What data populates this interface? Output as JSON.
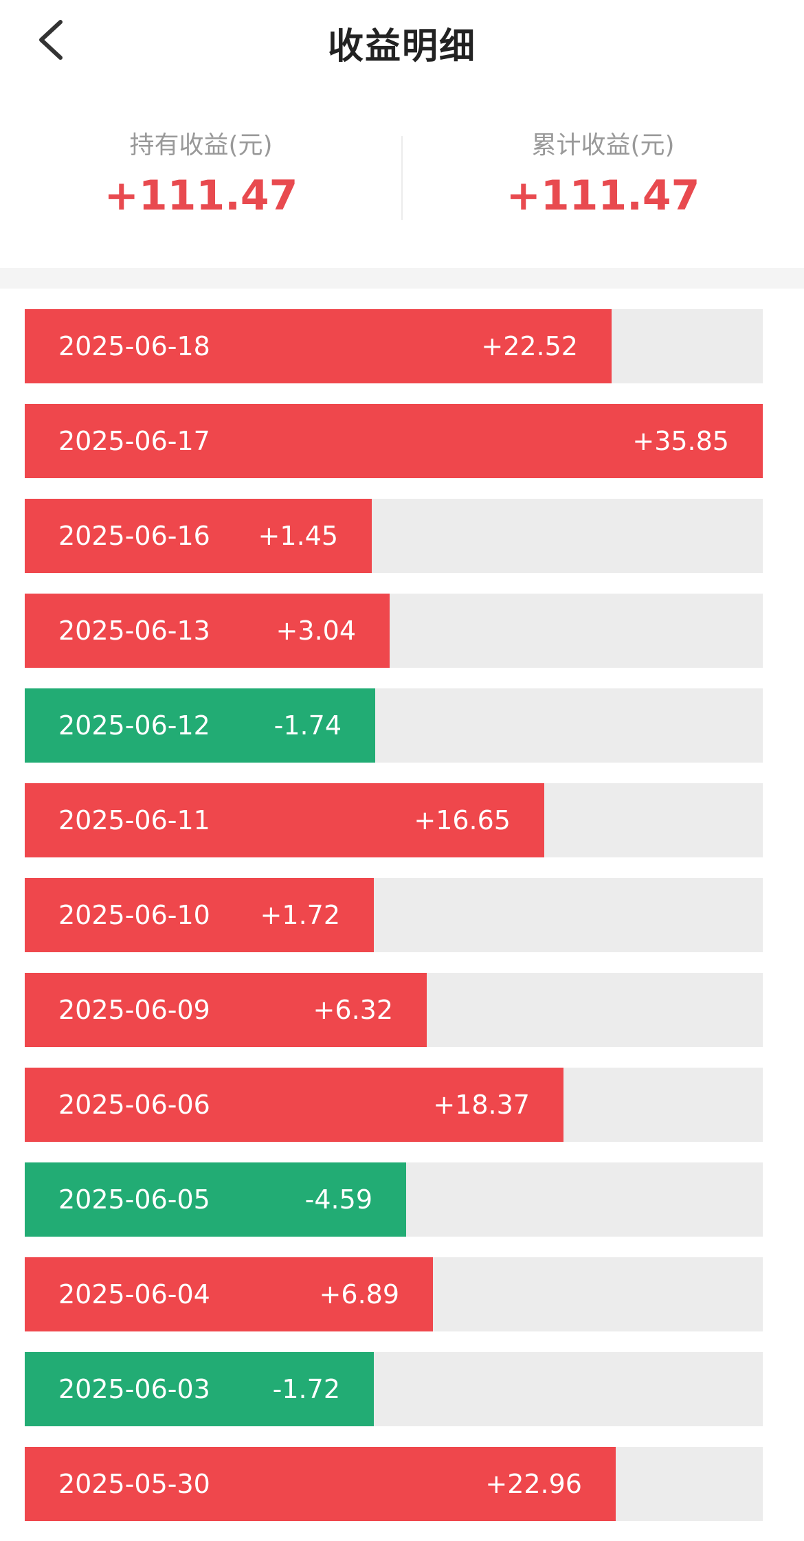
{
  "header": {
    "title": "收益明细",
    "back_icon": "chevron-left-icon"
  },
  "summary": {
    "holding_label": "持有收益(元)",
    "holding_value": "+111.47",
    "cumulative_label": "累计收益(元)",
    "cumulative_value": "+111.47"
  },
  "colors": {
    "positive": "#ef474c",
    "negative": "#22ac74",
    "track": "#ececec",
    "value_text": "#e84a4f"
  },
  "daily": [
    {
      "date": "2025-06-18",
      "value": "+22.52",
      "amount": 22.52,
      "fill": 0.795
    },
    {
      "date": "2025-06-17",
      "value": "+35.85",
      "amount": 35.85,
      "fill": 1.0
    },
    {
      "date": "2025-06-16",
      "value": "+1.45",
      "amount": 1.45,
      "fill": 0.47
    },
    {
      "date": "2025-06-13",
      "value": "+3.04",
      "amount": 3.04,
      "fill": 0.494
    },
    {
      "date": "2025-06-12",
      "value": "-1.74",
      "amount": -1.74,
      "fill": 0.475
    },
    {
      "date": "2025-06-11",
      "value": "+16.65",
      "amount": 16.65,
      "fill": 0.704
    },
    {
      "date": "2025-06-10",
      "value": "+1.72",
      "amount": 1.72,
      "fill": 0.473
    },
    {
      "date": "2025-06-09",
      "value": "+6.32",
      "amount": 6.32,
      "fill": 0.545
    },
    {
      "date": "2025-06-06",
      "value": "+18.37",
      "amount": 18.37,
      "fill": 0.73
    },
    {
      "date": "2025-06-05",
      "value": "-4.59",
      "amount": -4.59,
      "fill": 0.517
    },
    {
      "date": "2025-06-04",
      "value": "+6.89",
      "amount": 6.89,
      "fill": 0.553
    },
    {
      "date": "2025-06-03",
      "value": "-1.72",
      "amount": -1.72,
      "fill": 0.473
    },
    {
      "date": "2025-05-30",
      "value": "+22.96",
      "amount": 22.96,
      "fill": 0.801
    }
  ]
}
